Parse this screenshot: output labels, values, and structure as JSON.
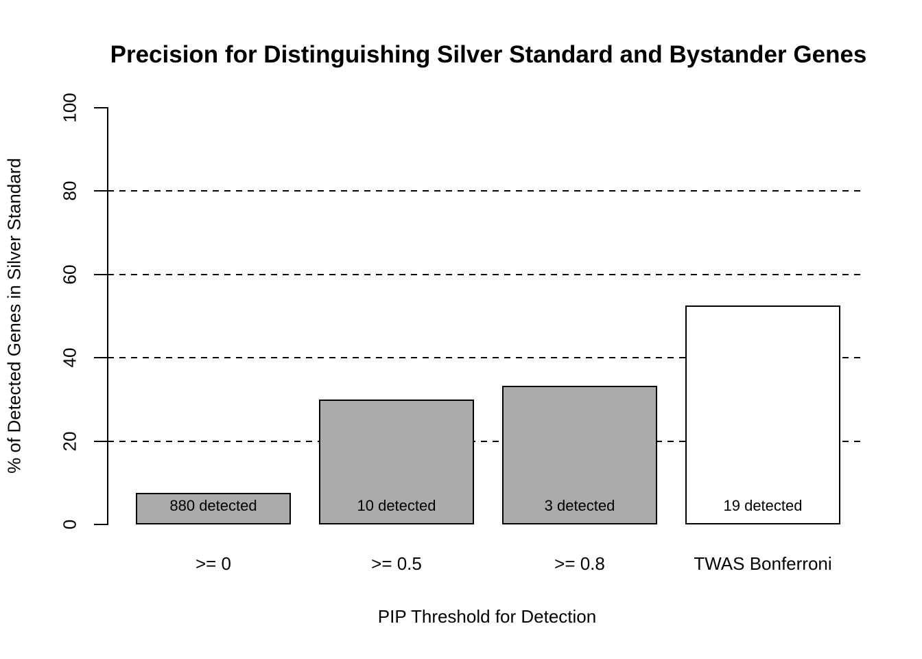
{
  "chart_data": {
    "type": "bar",
    "title": "Precision for Distinguishing Silver Standard and Bystander Genes",
    "xlabel": "PIP Threshold for Detection",
    "ylabel": "% of Detected Genes in Silver Standard",
    "categories": [
      ">= 0",
      ">= 0.5",
      ">= 0.8",
      "TWAS Bonferroni"
    ],
    "values": [
      7.5,
      30,
      33.3,
      52.6
    ],
    "bar_labels": [
      "880 detected",
      "10 detected",
      "3 detected",
      "19 detected"
    ],
    "bar_fill_colors": [
      "#ababab",
      "#ababab",
      "#ababab",
      "#ffffff"
    ],
    "bar_border_color": "#000000",
    "ylim": [
      0,
      100
    ],
    "yticks": [
      0,
      20,
      40,
      60,
      80,
      100
    ],
    "grid_values": [
      20,
      40,
      60,
      80
    ],
    "grid_style": "dashed",
    "legend_position": "none",
    "background": "#ffffff",
    "text_color": "#000000"
  }
}
